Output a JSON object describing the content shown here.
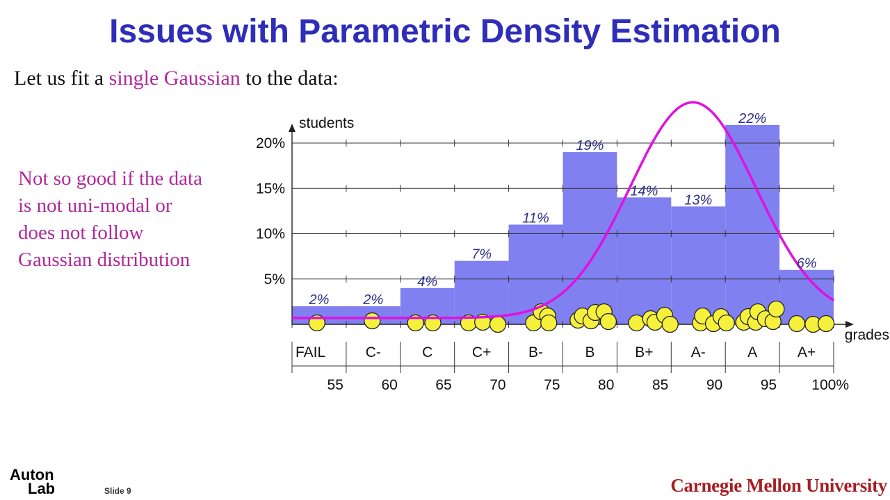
{
  "slide": {
    "title": "Issues with Parametric Density Estimation",
    "intro_prefix": "Let us fit a ",
    "intro_highlight": "single Gaussian",
    "intro_suffix": " to the data:",
    "note_lines": [
      "Not so good if the data",
      "is not uni-modal or",
      "does not follow",
      "Gaussian distribution"
    ],
    "logo_line1": "Auton",
    "logo_line2": "Lab",
    "slide_number": "Slide 9",
    "university": "Carnegie Mellon University"
  },
  "colors": {
    "title": "#2e2eb8",
    "bar_fill": "#8080f0",
    "curve": "#e010e0",
    "highlight_text": "#b0299a",
    "dot_fill": "#f5f03c",
    "bar_label": "#2e2e8a",
    "cmu_red": "#a61e22"
  },
  "chart_data": {
    "type": "bar",
    "ylabel": "students",
    "xlabel": "grades",
    "y_ticks": [
      "5%",
      "10%",
      "15%",
      "20%"
    ],
    "y_tick_values": [
      5,
      10,
      15,
      20
    ],
    "ylim": [
      0,
      24
    ],
    "x_ticks": [
      "55",
      "60",
      "65",
      "70",
      "75",
      "80",
      "85",
      "90",
      "95",
      "100%"
    ],
    "x_tick_values": [
      55,
      60,
      65,
      70,
      75,
      80,
      85,
      90,
      95,
      100
    ],
    "xlim": [
      50,
      100
    ],
    "categories": [
      "FAIL",
      "C-",
      "C",
      "C+",
      "B-",
      "B",
      "B+",
      "A-",
      "A",
      "A+"
    ],
    "bin_edges": [
      50,
      55,
      60,
      65,
      70,
      75,
      80,
      85,
      90,
      95,
      100
    ],
    "values": [
      2,
      2,
      4,
      7,
      11,
      19,
      14,
      13,
      22,
      6
    ],
    "value_labels": [
      "2%",
      "2%",
      "4%",
      "7%",
      "11%",
      "19%",
      "14%",
      "13%",
      "22%",
      "6%"
    ],
    "gaussian_fit": {
      "mean": 87,
      "sd": 5.8,
      "peak": 24.5,
      "baseline": 0.7
    },
    "students": [
      {
        "x": 52.3,
        "y": 0
      },
      {
        "x": 57.4,
        "y": 0.3
      },
      {
        "x": 61.4,
        "y": 0
      },
      {
        "x": 63.0,
        "y": 0
      },
      {
        "x": 66.3,
        "y": 0
      },
      {
        "x": 67.6,
        "y": 0.1
      },
      {
        "x": 69.0,
        "y": -0.2
      },
      {
        "x": 72.3,
        "y": 0
      },
      {
        "x": 73.0,
        "y": 1.6
      },
      {
        "x": 73.6,
        "y": 1.0
      },
      {
        "x": 73.7,
        "y": 0
      },
      {
        "x": 76.4,
        "y": 0.4
      },
      {
        "x": 76.8,
        "y": 1.0
      },
      {
        "x": 77.6,
        "y": 0.3
      },
      {
        "x": 78.0,
        "y": 1.5
      },
      {
        "x": 78.8,
        "y": 1.6
      },
      {
        "x": 79.2,
        "y": 0.2
      },
      {
        "x": 81.8,
        "y": 0
      },
      {
        "x": 83.1,
        "y": 0.6
      },
      {
        "x": 83.5,
        "y": 0.1
      },
      {
        "x": 84.4,
        "y": 1.1
      },
      {
        "x": 84.9,
        "y": -0.2
      },
      {
        "x": 87.7,
        "y": 0
      },
      {
        "x": 87.9,
        "y": 1.0
      },
      {
        "x": 88.9,
        "y": -0.1
      },
      {
        "x": 89.6,
        "y": 0.9
      },
      {
        "x": 90.1,
        "y": 0
      },
      {
        "x": 91.7,
        "y": 0.1
      },
      {
        "x": 92.1,
        "y": 0.9
      },
      {
        "x": 92.8,
        "y": 0.1
      },
      {
        "x": 93.0,
        "y": 1.6
      },
      {
        "x": 93.7,
        "y": 0.6
      },
      {
        "x": 94.4,
        "y": 0.2
      },
      {
        "x": 94.7,
        "y": 2.0
      },
      {
        "x": 96.6,
        "y": -0.1
      },
      {
        "x": 98.1,
        "y": -0.2
      },
      {
        "x": 99.3,
        "y": -0.1
      }
    ]
  }
}
